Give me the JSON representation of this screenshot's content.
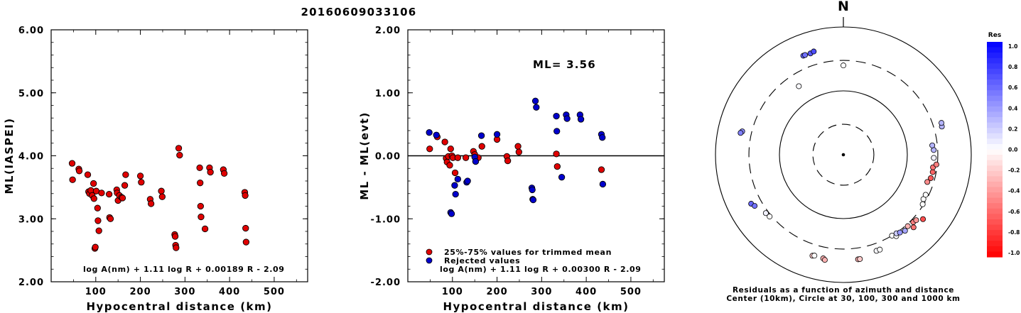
{
  "page_title": "20160609033106",
  "chart_data": [
    {
      "type": "scatter",
      "id": "left",
      "title": "",
      "xlabel": "Hypocentral distance (km)",
      "ylabel": "ML(IASPEI)",
      "xlim": [
        0,
        575
      ],
      "ylim": [
        2.0,
        6.0
      ],
      "x_ticks": [
        "100",
        "200",
        "300",
        "400",
        "500"
      ],
      "y_ticks": [
        "2.00",
        "3.00",
        "4.00",
        "5.00",
        "6.00"
      ],
      "formula": "log A(nm) + 1.11 log R + 0.00189 R - 2.09",
      "series": [
        {
          "color": "#e00000",
          "points": [
            [
              47,
              3.88
            ],
            [
              48,
              3.62
            ],
            [
              62,
              3.79
            ],
            [
              63,
              3.76
            ],
            [
              82,
              3.7
            ],
            [
              84,
              3.43
            ],
            [
              86,
              3.4
            ],
            [
              89,
              3.45
            ],
            [
              92,
              3.37
            ],
            [
              95,
              3.56
            ],
            [
              96,
              3.32
            ],
            [
              98,
              2.53
            ],
            [
              99,
              2.55
            ],
            [
              101,
              3.44
            ],
            [
              104,
              3.17
            ],
            [
              105,
              2.97
            ],
            [
              107,
              2.81
            ],
            [
              113,
              3.41
            ],
            [
              130,
              3.39
            ],
            [
              131,
              3.02
            ],
            [
              133,
              3.0
            ],
            [
              147,
              3.46
            ],
            [
              148,
              3.41
            ],
            [
              150,
              3.29
            ],
            [
              153,
              3.37
            ],
            [
              158,
              3.34
            ],
            [
              160,
              3.33
            ],
            [
              165,
              3.53
            ],
            [
              167,
              3.7
            ],
            [
              200,
              3.68
            ],
            [
              202,
              3.58
            ],
            [
              222,
              3.31
            ],
            [
              224,
              3.24
            ],
            [
              247,
              3.44
            ],
            [
              249,
              3.35
            ],
            [
              277,
              2.75
            ],
            [
              278,
              2.72
            ],
            [
              279,
              2.58
            ],
            [
              280,
              2.54
            ],
            [
              286,
              4.12
            ],
            [
              288,
              4.01
            ],
            [
              333,
              3.81
            ],
            [
              334,
              3.57
            ],
            [
              335,
              3.2
            ],
            [
              336,
              3.03
            ],
            [
              345,
              2.84
            ],
            [
              355,
              3.81
            ],
            [
              357,
              3.74
            ],
            [
              386,
              3.78
            ],
            [
              388,
              3.72
            ],
            [
              434,
              3.42
            ],
            [
              435,
              3.37
            ],
            [
              436,
              2.85
            ],
            [
              437,
              2.63
            ]
          ]
        }
      ]
    },
    {
      "type": "scatter",
      "id": "middle",
      "title": "",
      "xlabel": "Hypocentral distance (km)",
      "ylabel": "ML - ML(evt)",
      "xlim": [
        0,
        575
      ],
      "ylim": [
        -2.0,
        2.0
      ],
      "x_ticks": [
        "100",
        "200",
        "300",
        "400",
        "500"
      ],
      "y_ticks": [
        "-2.00",
        "-1.00",
        "0.00",
        "1.00",
        "2.00"
      ],
      "reference_line": 0.0,
      "annotation": "ML= 3.56",
      "legend": [
        "25%-75% values for trimmed mean",
        "Rejected values"
      ],
      "formula": "log A(nm) + 1.11 log R + 0.00300 R - 2.09",
      "series": [
        {
          "name": "25%-75% values for trimmed mean",
          "color": "#e00000",
          "points": [
            [
              49,
              0.11
            ],
            [
              66,
              0.3
            ],
            [
              83,
              0.22
            ],
            [
              86,
              -0.04
            ],
            [
              88,
              -0.1
            ],
            [
              91,
              -0.01
            ],
            [
              94,
              -0.15
            ],
            [
              96,
              0.11
            ],
            [
              99,
              0.0
            ],
            [
              101,
              -0.03
            ],
            [
              106,
              -0.27
            ],
            [
              112,
              -0.03
            ],
            [
              130,
              -0.03
            ],
            [
              147,
              0.07
            ],
            [
              150,
              0.02
            ],
            [
              152,
              -0.09
            ],
            [
              158,
              -0.03
            ],
            [
              166,
              0.15
            ],
            [
              200,
              0.26
            ],
            [
              222,
              -0.01
            ],
            [
              224,
              -0.08
            ],
            [
              247,
              0.15
            ],
            [
              249,
              0.06
            ],
            [
              333,
              0.03
            ],
            [
              335,
              -0.17
            ],
            [
              434,
              -0.22
            ]
          ]
        },
        {
          "name": "Rejected values",
          "color": "#0000cc",
          "points": [
            [
              48,
              0.37
            ],
            [
              64,
              0.33
            ],
            [
              96,
              -0.9
            ],
            [
              98,
              -0.92
            ],
            [
              105,
              -0.47
            ],
            [
              107,
              -0.61
            ],
            [
              112,
              -0.37
            ],
            [
              132,
              -0.42
            ],
            [
              134,
              -0.4
            ],
            [
              150,
              -0.02
            ],
            [
              152,
              -0.09
            ],
            [
              165,
              0.32
            ],
            [
              200,
              0.34
            ],
            [
              278,
              -0.51
            ],
            [
              279,
              -0.54
            ],
            [
              280,
              -0.69
            ],
            [
              281,
              -0.7
            ],
            [
              286,
              0.87
            ],
            [
              288,
              0.77
            ],
            [
              333,
              0.63
            ],
            [
              334,
              0.39
            ],
            [
              345,
              -0.34
            ],
            [
              355,
              0.65
            ],
            [
              357,
              0.59
            ],
            [
              386,
              0.65
            ],
            [
              388,
              0.58
            ],
            [
              434,
              0.34
            ],
            [
              436,
              0.29
            ],
            [
              437,
              -0.45
            ]
          ]
        }
      ]
    }
  ],
  "polar": {
    "north_label": "N",
    "caption_line1": "Residuals as a function of azimuth and distance",
    "caption_line2": "Center (10km), Circle at 30, 100, 300 and 1000 km",
    "colorbar_title": "Res",
    "colorbar_ticks": [
      "1.0",
      "0.8",
      "0.6",
      "0.4",
      "0.2",
      "0.0",
      "-0.2",
      "-0.4",
      "-0.6",
      "-0.8",
      "-1.0"
    ],
    "colors": {
      "positive": "#0000ff",
      "neutral": "#ffffff",
      "negative": "#ff0000"
    },
    "stations": [
      {
        "az": 342,
        "dist": 465,
        "res": 0.65
      },
      {
        "az": 344,
        "dist": 480,
        "res": 0.7
      },
      {
        "az": 338,
        "dist": 470,
        "res": 0.6
      },
      {
        "az": 339,
        "dist": 470,
        "res": 0.55
      },
      {
        "az": 0,
        "dist": 250,
        "res": 0.0
      },
      {
        "az": 327,
        "dist": 190,
        "res": 0.02
      },
      {
        "az": 283,
        "dist": 420,
        "res": 0.45
      },
      {
        "az": 282,
        "dist": 440,
        "res": 0.5
      },
      {
        "az": 242,
        "dist": 430,
        "res": 0.6
      },
      {
        "az": 240,
        "dist": 400,
        "res": 0.55
      },
      {
        "az": 233,
        "dist": 330,
        "res": 0.05
      },
      {
        "az": 230,
        "dist": 320,
        "res": 0.0
      },
      {
        "az": 197,
        "dist": 450,
        "res": -0.2
      },
      {
        "az": 196,
        "dist": 440,
        "res": 0.0
      },
      {
        "az": 191,
        "dist": 450,
        "res": -0.3
      },
      {
        "az": 190,
        "dist": 470,
        "res": -0.3
      },
      {
        "az": 172,
        "dist": 450,
        "res": -0.3
      },
      {
        "az": 171,
        "dist": 450,
        "res": -0.2
      },
      {
        "az": 161,
        "dist": 390,
        "res": 0.02
      },
      {
        "az": 159,
        "dist": 390,
        "res": 0.0
      },
      {
        "az": 149,
        "dist": 300,
        "res": 0.0
      },
      {
        "az": 147,
        "dist": 330,
        "res": 0.0
      },
      {
        "az": 146,
        "dist": 305,
        "res": 0.2
      },
      {
        "az": 144,
        "dist": 320,
        "res": 0.4
      },
      {
        "az": 141,
        "dist": 340,
        "res": 0.35
      },
      {
        "az": 138,
        "dist": 320,
        "res": -0.3
      },
      {
        "az": 134,
        "dist": 330,
        "res": -0.5
      },
      {
        "az": 132,
        "dist": 340,
        "res": -0.4
      },
      {
        "az": 136,
        "dist": 380,
        "res": -0.55
      },
      {
        "az": 129,
        "dist": 400,
        "res": -0.7
      },
      {
        "az": 122,
        "dist": 290,
        "res": 0.0
      },
      {
        "az": 119,
        "dist": 270,
        "res": 0.0
      },
      {
        "az": 116,
        "dist": 270,
        "res": 0.0
      },
      {
        "az": 108,
        "dist": 240,
        "res": -0.45
      },
      {
        "az": 105,
        "dist": 260,
        "res": -0.65
      },
      {
        "az": 101,
        "dist": 265,
        "res": -0.6
      },
      {
        "az": 98,
        "dist": 260,
        "res": -0.55
      },
      {
        "az": 96,
        "dist": 290,
        "res": -0.5
      },
      {
        "az": 92,
        "dist": 260,
        "res": 0.05
      },
      {
        "az": 87,
        "dist": 260,
        "res": 0.3
      },
      {
        "az": 84,
        "dist": 250,
        "res": 0.3
      },
      {
        "az": 74,
        "dist": 400,
        "res": 0.3
      },
      {
        "az": 72,
        "dist": 410,
        "res": 0.3
      }
    ]
  }
}
